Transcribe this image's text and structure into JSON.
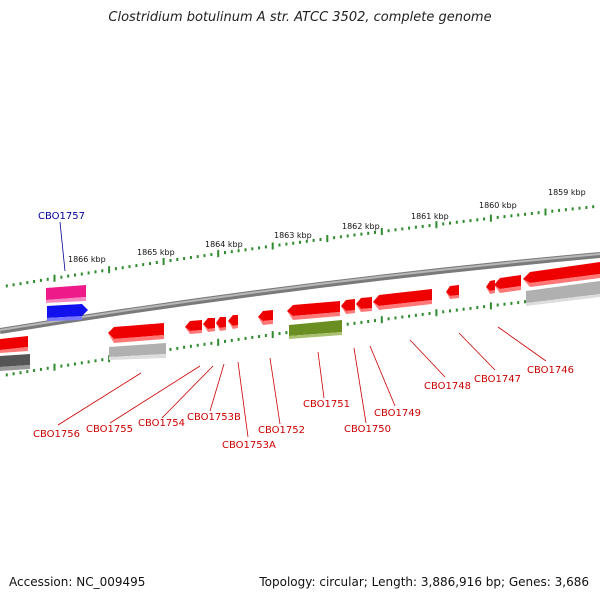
{
  "title": "Clostridium botulinum A str. ATCC 3502, complete genome",
  "footer": {
    "accession": "Accession: NC_009495",
    "topology": "Topology: circular; Length: 3,886,916 bp; Genes: 3,686"
  },
  "colors": {
    "backbone": "#7a7a7a",
    "tick": "#2e8b2e",
    "gene_label_red": "#cc0000",
    "gene_label_blue": "#000099",
    "gene_red": "#ee0000",
    "gene_magenta": "#ee1a8a",
    "gene_blue": "#1111ee",
    "gene_olive": "#6b8e23",
    "gene_gray": "#b0b0b0",
    "gene_dark": "#555555"
  },
  "scale_labels": [
    "1866 kbp",
    "1865 kbp",
    "1864 kbp",
    "1863 kbp",
    "1862 kbp",
    "1861 kbp",
    "1860 kbp",
    "1859 kbp"
  ],
  "gene_labels": [
    "CBO1757",
    "CBO1756",
    "CBO1755",
    "CBO1754",
    "CBO1753B",
    "CBO1753A",
    "CBO1752",
    "CBO1751",
    "CBO1750",
    "CBO1749",
    "CBO1748",
    "CBO1747",
    "CBO1746"
  ]
}
